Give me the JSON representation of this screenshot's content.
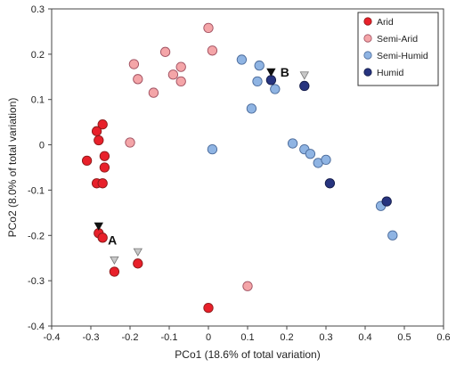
{
  "chart_data": {
    "type": "scatter",
    "title": "",
    "xlabel": "PCo1 (18.6% of total variation)",
    "ylabel": "PCo2 (8.0% of total variation)",
    "xlim": [
      -0.4,
      0.6
    ],
    "ylim": [
      -0.4,
      0.3
    ],
    "xticks": [
      "-0.4",
      "-0.3",
      "-0.2",
      "-0.1",
      "0",
      "0.1",
      "0.2",
      "0.3",
      "0.4",
      "0.5",
      "0.6"
    ],
    "yticks": [
      "-0.4",
      "-0.3",
      "-0.2",
      "-0.1",
      "0",
      "0.1",
      "0.2",
      "0.3"
    ],
    "grid": false,
    "legend_position": "top-right",
    "series": [
      {
        "name": "Arid",
        "fill": "#e8202a",
        "stroke": "#8c1a1a",
        "points": [
          [
            -0.27,
            0.045
          ],
          [
            -0.285,
            0.03
          ],
          [
            -0.28,
            0.01
          ],
          [
            -0.31,
            -0.035
          ],
          [
            -0.265,
            -0.025
          ],
          [
            -0.265,
            -0.05
          ],
          [
            -0.285,
            -0.085
          ],
          [
            -0.27,
            -0.085
          ],
          [
            -0.28,
            -0.195
          ],
          [
            -0.27,
            -0.205
          ],
          [
            -0.24,
            -0.28
          ],
          [
            -0.18,
            -0.262
          ],
          [
            0.0,
            -0.36
          ]
        ]
      },
      {
        "name": "Semi-Arid",
        "fill": "#f4a5a8",
        "stroke": "#a05060",
        "points": [
          [
            0.0,
            0.258
          ],
          [
            0.01,
            0.208
          ],
          [
            -0.11,
            0.205
          ],
          [
            -0.09,
            0.155
          ],
          [
            -0.07,
            0.172
          ],
          [
            -0.07,
            0.14
          ],
          [
            -0.19,
            0.178
          ],
          [
            -0.18,
            0.145
          ],
          [
            -0.14,
            0.115
          ],
          [
            -0.2,
            0.005
          ],
          [
            0.1,
            -0.312
          ]
        ]
      },
      {
        "name": "Semi-Humid",
        "fill": "#8fb4e3",
        "stroke": "#4a6a9a",
        "points": [
          [
            0.085,
            0.188
          ],
          [
            0.13,
            0.175
          ],
          [
            0.125,
            0.14
          ],
          [
            0.17,
            0.123
          ],
          [
            0.11,
            0.08
          ],
          [
            0.01,
            -0.01
          ],
          [
            0.215,
            0.003
          ],
          [
            0.245,
            -0.01
          ],
          [
            0.26,
            -0.02
          ],
          [
            0.28,
            -0.04
          ],
          [
            0.3,
            -0.033
          ],
          [
            0.44,
            -0.135
          ],
          [
            0.47,
            -0.2
          ]
        ]
      },
      {
        "name": "Humid",
        "fill": "#27347f",
        "stroke": "#141c4a",
        "points": [
          [
            0.16,
            0.143
          ],
          [
            0.245,
            0.13
          ],
          [
            0.31,
            -0.085
          ],
          [
            0.455,
            -0.125
          ]
        ]
      }
    ],
    "annotations": [
      {
        "text": "A",
        "x": -0.245,
        "y": -0.21
      },
      {
        "text": "B",
        "x": 0.195,
        "y": 0.16
      }
    ],
    "markers": [
      {
        "kind": "filled",
        "x": -0.28,
        "y": -0.18
      },
      {
        "kind": "open",
        "x": -0.24,
        "y": -0.255
      },
      {
        "kind": "open",
        "x": -0.18,
        "y": -0.237
      },
      {
        "kind": "filled",
        "x": 0.16,
        "y": 0.16
      },
      {
        "kind": "open",
        "x": 0.245,
        "y": 0.153
      }
    ]
  }
}
